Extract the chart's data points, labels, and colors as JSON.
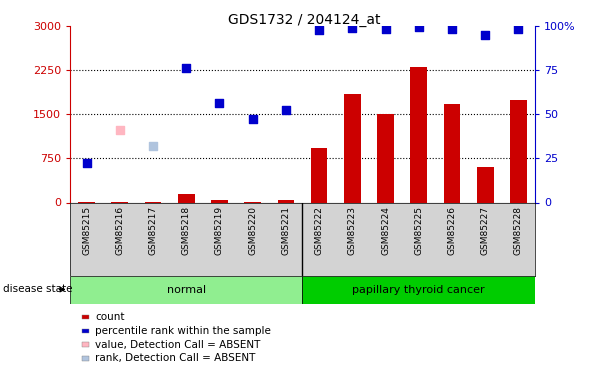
{
  "title": "GDS1732 / 204124_at",
  "samples": [
    "GSM85215",
    "GSM85216",
    "GSM85217",
    "GSM85218",
    "GSM85219",
    "GSM85220",
    "GSM85221",
    "GSM85222",
    "GSM85223",
    "GSM85224",
    "GSM85225",
    "GSM85226",
    "GSM85227",
    "GSM85228"
  ],
  "counts": [
    5,
    5,
    10,
    140,
    50,
    10,
    50,
    920,
    1850,
    1500,
    2300,
    1680,
    600,
    1750
  ],
  "blue_dots": {
    "GSM85215": 670,
    "GSM85218": 2290,
    "GSM85219": 1700,
    "GSM85220": 1420,
    "GSM85221": 1580,
    "GSM85222": 2940,
    "GSM85223": 2970,
    "GSM85224": 2960,
    "GSM85225": 2980,
    "GSM85226": 2960,
    "GSM85227": 2850,
    "GSM85228": 2960
  },
  "pink_dots": {
    "GSM85216": 1230
  },
  "lightblue_dots": {
    "GSM85217": 960
  },
  "normal_samples": [
    "GSM85215",
    "GSM85216",
    "GSM85217",
    "GSM85218",
    "GSM85219",
    "GSM85220",
    "GSM85221"
  ],
  "cancer_samples": [
    "GSM85222",
    "GSM85223",
    "GSM85224",
    "GSM85225",
    "GSM85226",
    "GSM85227",
    "GSM85228"
  ],
  "ylim_left": [
    0,
    3000
  ],
  "ylim_right": [
    0,
    100
  ],
  "yticks_left": [
    0,
    750,
    1500,
    2250,
    3000
  ],
  "yticks_right": [
    0,
    25,
    50,
    75,
    100
  ],
  "bar_color": "#CC0000",
  "dot_color_present": "#0000CC",
  "dot_color_absent_value": "#FFB6C1",
  "dot_color_absent_rank": "#B0C4DE",
  "normal_bg": "#90EE90",
  "cancer_bg": "#00CC00",
  "sample_bg": "#D3D3D3",
  "legend_items": [
    {
      "label": "count",
      "color": "#CC0000"
    },
    {
      "label": "percentile rank within the sample",
      "color": "#0000CC"
    },
    {
      "label": "value, Detection Call = ABSENT",
      "color": "#FFB6C1"
    },
    {
      "label": "rank, Detection Call = ABSENT",
      "color": "#B0C4DE"
    }
  ]
}
